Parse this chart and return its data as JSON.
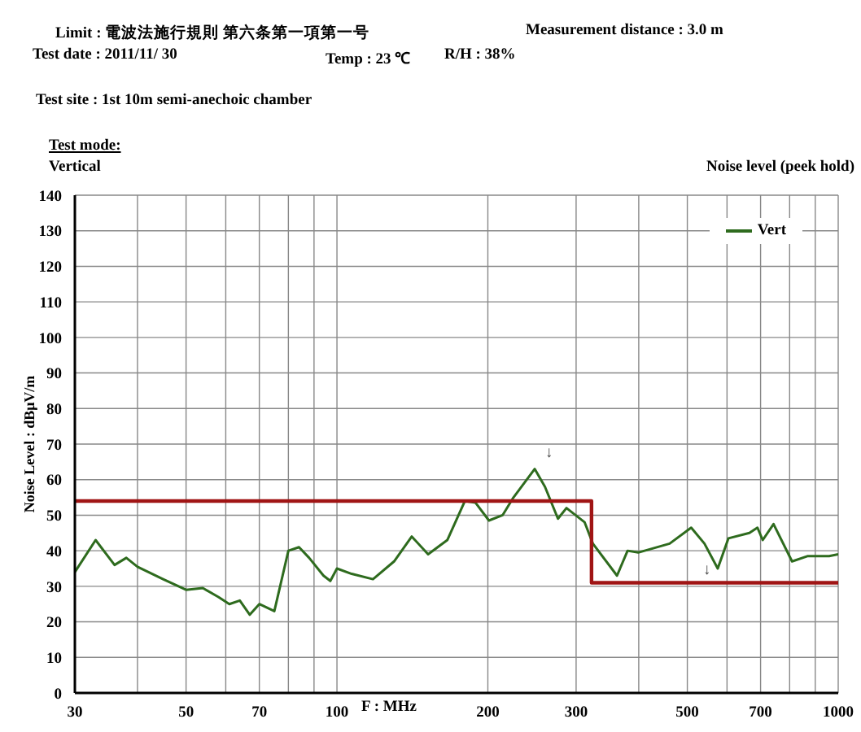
{
  "chart_data": {
    "type": "line",
    "xlabel": "F : MHz",
    "ylabel": "Noise Level : dBμV/m",
    "annotations": [
      "Limit : 電波法施行規則 第六条第一項第一号",
      "Measurement distance : 3.0 m",
      "Test date : 2011/11/ 30",
      "Temp : 23 ℃",
      "R/H : 38%",
      "Test site : 1st 10m semi-anechoic chamber",
      "Test mode:",
      "Vertical",
      "Noise level (peek hold)",
      "↓",
      "↓"
    ],
    "log": "x",
    "xlim": [
      30,
      1000
    ],
    "xticks": [
      30,
      {
        "value": 40,
        "label": null
      },
      50,
      {
        "value": 60,
        "label": null
      },
      70,
      {
        "value": 80,
        "label": null
      },
      {
        "value": 90,
        "label": null
      },
      100,
      200,
      300,
      {
        "value": 400,
        "label": null
      },
      500,
      {
        "value": 600,
        "label": null
      },
      700,
      {
        "value": 800,
        "label": null
      },
      {
        "value": 900,
        "label": null
      },
      1000
    ],
    "ylim": [
      0,
      140
    ],
    "yticks": [
      0,
      10,
      20,
      30,
      40,
      50,
      60,
      70,
      80,
      90,
      100,
      110,
      120,
      130,
      140
    ],
    "grid": true,
    "legend": "top right",
    "marker": "none",
    "line_style": "solid",
    "series": [
      {
        "name": "Vert",
        "color": "#2e6b1e",
        "x": [
          30,
          33,
          36,
          38,
          40,
          45,
          50,
          54,
          58,
          61,
          64,
          67,
          70,
          75,
          80,
          84,
          88,
          94,
          97,
          100,
          107,
          118,
          130,
          141,
          152,
          166,
          180,
          189,
          201,
          214,
          225,
          248,
          260,
          276,
          287,
          312,
          324,
          362,
          380,
          399,
          461,
          509,
          541,
          575,
          604,
          665,
          690,
          707,
          743,
          809,
          870,
          959,
          1000
        ],
        "values": [
          34,
          43,
          36,
          38,
          35.5,
          32,
          29,
          29.5,
          27,
          25,
          26,
          22,
          25,
          23,
          40,
          41,
          38,
          33,
          31.5,
          35,
          33.5,
          32,
          37,
          44,
          39,
          43,
          54,
          53.5,
          48.5,
          50,
          55,
          63,
          58,
          49,
          52,
          48,
          42,
          33,
          40,
          39.5,
          42,
          46.5,
          42,
          35,
          43.5,
          45,
          46.5,
          43,
          47.5,
          37,
          38.5,
          38.5,
          39
        ]
      },
      {
        "type": "line",
        "color": "#a01515",
        "x": [
          30,
          322,
          322,
          1000
        ],
        "values": [
          54,
          54,
          31,
          31
        ]
      }
    ]
  }
}
